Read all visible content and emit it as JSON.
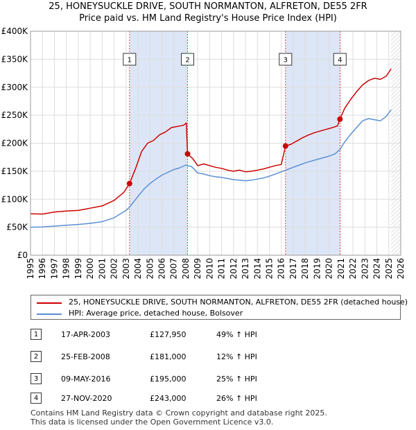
{
  "title_line1": "25, HONEYSUCKLE DRIVE, SOUTH NORMANTON, ALFRETON, DE55 2FR",
  "title_line2": "Price paid vs. HM Land Registry's House Price Index (HPI)",
  "colors": {
    "property": "#cc0000",
    "hpi": "#5b8fd4",
    "shade": "#dde6f7",
    "grid": "#dddddd",
    "marker_line": "#dd4444"
  },
  "legend": {
    "property_label": "25, HONEYSUCKLE DRIVE, SOUTH NORMANTON, ALFRETON, DE55 2FR (detached house)",
    "hpi_label": "HPI: Average price, detached house, Bolsover"
  },
  "sales": [
    {
      "num": "1",
      "date": "17-APR-2003",
      "price": "£127,950",
      "hpi": "49% ↑ HPI"
    },
    {
      "num": "2",
      "date": "25-FEB-2008",
      "price": "£181,000",
      "hpi": "12% ↑ HPI"
    },
    {
      "num": "3",
      "date": "09-MAY-2016",
      "price": "£195,000",
      "hpi": "25% ↑ HPI"
    },
    {
      "num": "4",
      "date": "27-NOV-2020",
      "price": "£243,000",
      "hpi": "26% ↑ HPI"
    }
  ],
  "footer_line1": "Contains HM Land Registry data © Crown copyright and database right 2025.",
  "footer_line2": "This data is licensed under the Open Government Licence v3.0.",
  "chart_data": {
    "type": "line",
    "title": "25, HONEYSUCKLE DRIVE, SOUTH NORMANTON, ALFRETON, DE55 2FR",
    "subtitle": "Price paid vs. HM Land Registry's House Price Index (HPI)",
    "xlim": [
      1995,
      2026
    ],
    "ylim": [
      0,
      400000
    ],
    "x_ticks": [
      1995,
      1996,
      1997,
      1998,
      1999,
      2000,
      2001,
      2002,
      2003,
      2004,
      2005,
      2006,
      2007,
      2008,
      2009,
      2010,
      2011,
      2012,
      2013,
      2014,
      2015,
      2016,
      2017,
      2018,
      2019,
      2020,
      2021,
      2022,
      2023,
      2024,
      2025,
      2026
    ],
    "y_ticks": [
      0,
      50000,
      100000,
      150000,
      200000,
      250000,
      300000,
      350000,
      400000
    ],
    "y_tick_labels": [
      "£0",
      "£50K",
      "£100K",
      "£150K",
      "£200K",
      "£250K",
      "£300K",
      "£350K",
      "£400K"
    ],
    "grid": true,
    "shaded_ranges": [
      [
        2003.29,
        2008.15
      ],
      [
        2016.35,
        2020.91
      ]
    ],
    "hatched_from": 2025.2,
    "sale_markers": [
      {
        "label": "1",
        "x": 2003.29,
        "y": 127950
      },
      {
        "label": "2",
        "x": 2008.15,
        "y": 181000
      },
      {
        "label": "3",
        "x": 2016.35,
        "y": 195000
      },
      {
        "label": "4",
        "x": 2020.91,
        "y": 243000
      }
    ],
    "series": [
      {
        "name": "25, HONEYSUCKLE DRIVE, SOUTH NORMANTON, ALFRETON, DE55 2FR (detached house)",
        "color": "#cc0000",
        "points": [
          [
            1995,
            74000
          ],
          [
            1996,
            73500
          ],
          [
            1997,
            77000
          ],
          [
            1998,
            79000
          ],
          [
            1999,
            80000
          ],
          [
            2000,
            84000
          ],
          [
            2001,
            88000
          ],
          [
            2002,
            98000
          ],
          [
            2002.8,
            112000
          ],
          [
            2003.29,
            127950
          ],
          [
            2003.8,
            155000
          ],
          [
            2004.3,
            185000
          ],
          [
            2004.8,
            200000
          ],
          [
            2005.3,
            205000
          ],
          [
            2005.8,
            215000
          ],
          [
            2006.3,
            220000
          ],
          [
            2006.8,
            228000
          ],
          [
            2007.3,
            230000
          ],
          [
            2007.8,
            232000
          ],
          [
            2008.05,
            236000
          ],
          [
            2008.15,
            181000
          ],
          [
            2008.6,
            172000
          ],
          [
            2009.0,
            160000
          ],
          [
            2009.5,
            163000
          ],
          [
            2010,
            160000
          ],
          [
            2010.5,
            157000
          ],
          [
            2011,
            155000
          ],
          [
            2011.5,
            152000
          ],
          [
            2012,
            150000
          ],
          [
            2012.5,
            152000
          ],
          [
            2013,
            149000
          ],
          [
            2013.5,
            150000
          ],
          [
            2014,
            152000
          ],
          [
            2014.5,
            154000
          ],
          [
            2015,
            157000
          ],
          [
            2015.5,
            160000
          ],
          [
            2016.0,
            162000
          ],
          [
            2016.35,
            195000
          ],
          [
            2016.8,
            198000
          ],
          [
            2017.3,
            204000
          ],
          [
            2017.8,
            210000
          ],
          [
            2018.3,
            215000
          ],
          [
            2018.8,
            219000
          ],
          [
            2019.3,
            222000
          ],
          [
            2019.8,
            225000
          ],
          [
            2020.3,
            228000
          ],
          [
            2020.7,
            231000
          ],
          [
            2020.91,
            243000
          ],
          [
            2021.3,
            262000
          ],
          [
            2021.8,
            278000
          ],
          [
            2022.3,
            292000
          ],
          [
            2022.8,
            304000
          ],
          [
            2023.3,
            312000
          ],
          [
            2023.8,
            316000
          ],
          [
            2024.3,
            314000
          ],
          [
            2024.8,
            320000
          ],
          [
            2025.2,
            333000
          ]
        ]
      },
      {
        "name": "HPI: Average price, detached house, Bolsover",
        "color": "#5b8fd4",
        "points": [
          [
            1995,
            50000
          ],
          [
            1996,
            50500
          ],
          [
            1997,
            52000
          ],
          [
            1998,
            53500
          ],
          [
            1999,
            55000
          ],
          [
            2000,
            57000
          ],
          [
            2001,
            60000
          ],
          [
            2002,
            67000
          ],
          [
            2003,
            80000
          ],
          [
            2003.29,
            86000
          ],
          [
            2004,
            105000
          ],
          [
            2004.5,
            118000
          ],
          [
            2005,
            128000
          ],
          [
            2005.5,
            136000
          ],
          [
            2006,
            143000
          ],
          [
            2006.5,
            148000
          ],
          [
            2007,
            153000
          ],
          [
            2007.5,
            156000
          ],
          [
            2008,
            161000
          ],
          [
            2008.5,
            158000
          ],
          [
            2009,
            147000
          ],
          [
            2009.5,
            145000
          ],
          [
            2010,
            142000
          ],
          [
            2010.5,
            140000
          ],
          [
            2011,
            139000
          ],
          [
            2011.5,
            137000
          ],
          [
            2012,
            135000
          ],
          [
            2012.5,
            134000
          ],
          [
            2013,
            133000
          ],
          [
            2013.5,
            134000
          ],
          [
            2014,
            136000
          ],
          [
            2014.5,
            138000
          ],
          [
            2015,
            141000
          ],
          [
            2015.5,
            145000
          ],
          [
            2016,
            149000
          ],
          [
            2016.5,
            153000
          ],
          [
            2017,
            157000
          ],
          [
            2017.5,
            161000
          ],
          [
            2018,
            165000
          ],
          [
            2018.5,
            168000
          ],
          [
            2019,
            171000
          ],
          [
            2019.5,
            174000
          ],
          [
            2020,
            177000
          ],
          [
            2020.5,
            181000
          ],
          [
            2020.91,
            189000
          ],
          [
            2021.3,
            202000
          ],
          [
            2021.8,
            216000
          ],
          [
            2022.3,
            228000
          ],
          [
            2022.8,
            240000
          ],
          [
            2023.3,
            244000
          ],
          [
            2023.8,
            242000
          ],
          [
            2024.3,
            240000
          ],
          [
            2024.8,
            248000
          ],
          [
            2025.2,
            260000
          ]
        ]
      }
    ]
  }
}
